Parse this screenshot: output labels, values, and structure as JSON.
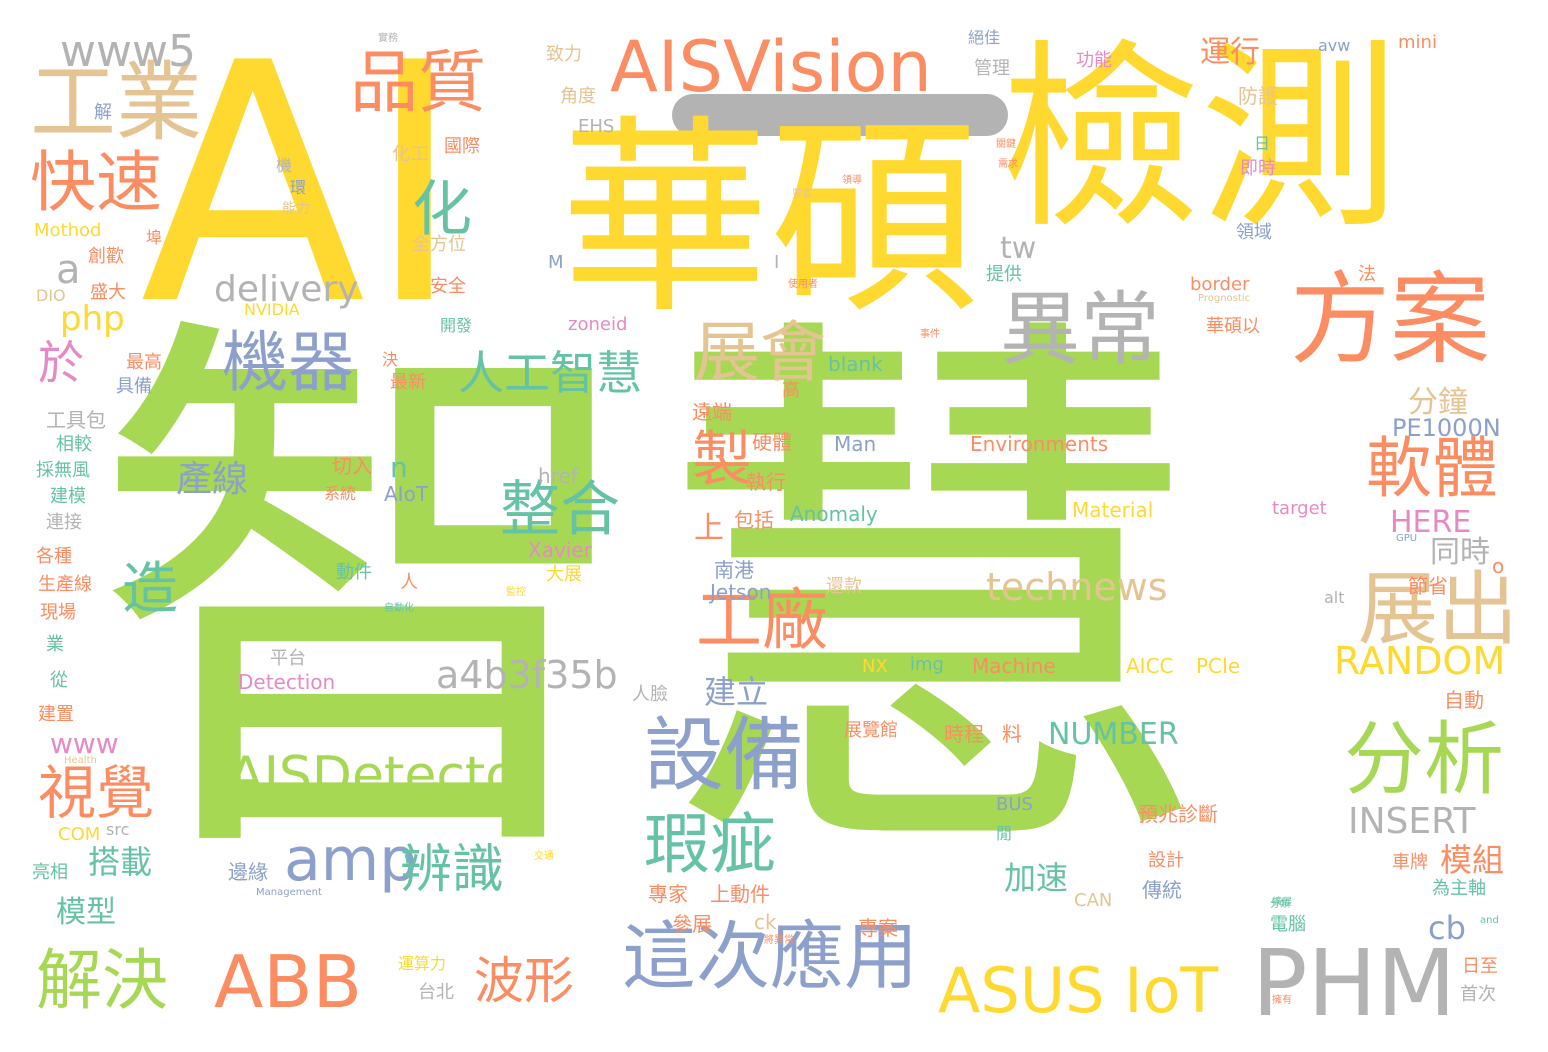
{
  "palette": {
    "green": "#a6d854",
    "yellow": "#ffd92f",
    "orange": "#fc8d62",
    "blue": "#8da0cb",
    "teal": "#66c2a5",
    "tan": "#e5c494",
    "gray": "#b3b3b3",
    "pink": "#e78ac3"
  },
  "words": [
    {
      "text": "智慧",
      "color": "green"
    },
    {
      "text": "AI",
      "color": "yellow"
    },
    {
      "text": "華碩",
      "color": "yellow"
    },
    {
      "text": "檢測",
      "color": "yellow"
    },
    {
      "text": "方案",
      "color": "orange"
    },
    {
      "text": "異常",
      "color": "gray"
    },
    {
      "text": "AISVision",
      "color": "orange"
    },
    {
      "text": "工業",
      "color": "tan"
    },
    {
      "text": "品質",
      "color": "orange"
    },
    {
      "text": "www5",
      "color": "gray"
    },
    {
      "text": "快速",
      "color": "orange"
    },
    {
      "text": "化",
      "color": "teal"
    },
    {
      "text": "機器",
      "color": "blue"
    },
    {
      "text": "展會",
      "color": "tan"
    },
    {
      "text": "人工智慧",
      "color": "teal"
    },
    {
      "text": "delivery",
      "color": "gray"
    },
    {
      "text": "tw",
      "color": "gray"
    },
    {
      "text": "php",
      "color": "yellow"
    },
    {
      "text": "a",
      "color": "gray"
    },
    {
      "text": "於",
      "color": "pink"
    },
    {
      "text": "軟體",
      "color": "orange"
    },
    {
      "text": "製",
      "color": "orange"
    },
    {
      "text": "整合",
      "color": "teal"
    },
    {
      "text": "展出",
      "color": "tan"
    },
    {
      "text": "工廠",
      "color": "orange"
    },
    {
      "text": "technews",
      "color": "tan"
    },
    {
      "text": "RANDOM",
      "color": "yellow"
    },
    {
      "text": "造",
      "color": "teal"
    },
    {
      "text": "產線",
      "color": "blue"
    },
    {
      "text": "a4b3f35b",
      "color": "gray"
    },
    {
      "text": "AISDetector",
      "color": "green"
    },
    {
      "text": "設備",
      "color": "blue"
    },
    {
      "text": "分析",
      "color": "green"
    },
    {
      "text": "amp",
      "color": "blue"
    },
    {
      "text": "視覺",
      "color": "orange"
    },
    {
      "text": "瑕疵",
      "color": "teal"
    },
    {
      "text": "辨識",
      "color": "teal"
    },
    {
      "text": "INSERT",
      "color": "gray"
    },
    {
      "text": "搭載",
      "color": "teal"
    },
    {
      "text": "模組",
      "color": "orange"
    },
    {
      "text": "NUMBER",
      "color": "teal"
    },
    {
      "text": "解決",
      "color": "green"
    },
    {
      "text": "ABB",
      "color": "orange"
    },
    {
      "text": "這次應用",
      "color": "blue"
    },
    {
      "text": "波形",
      "color": "orange"
    },
    {
      "text": "ASUS IoT",
      "color": "yellow"
    },
    {
      "text": "PHM",
      "color": "gray"
    },
    {
      "text": "cb",
      "color": "blue"
    },
    {
      "text": "www",
      "color": "pink"
    },
    {
      "text": "模型",
      "color": "teal"
    },
    {
      "text": "加速",
      "color": "teal"
    },
    {
      "text": "HERE",
      "color": "pink"
    },
    {
      "text": "分鐘",
      "color": "tan"
    },
    {
      "text": "PE1000N",
      "color": "blue"
    },
    {
      "text": "同時",
      "color": "gray"
    },
    {
      "text": "建立",
      "color": "blue"
    },
    {
      "text": "上",
      "color": "orange"
    },
    {
      "text": "運行",
      "color": "orange"
    },
    {
      "text": "n",
      "color": "teal"
    },
    {
      "text": "Environments",
      "color": "orange"
    },
    {
      "text": "Anomaly",
      "color": "teal"
    },
    {
      "text": "Material",
      "color": "yellow"
    },
    {
      "text": "Jetson",
      "color": "blue"
    },
    {
      "text": "Machine",
      "color": "orange"
    },
    {
      "text": "AICC",
      "color": "yellow"
    },
    {
      "text": "PCIe",
      "color": "yellow"
    },
    {
      "text": "Detection",
      "color": "pink"
    },
    {
      "text": "AIoT",
      "color": "blue"
    },
    {
      "text": "Xavier",
      "color": "pink"
    },
    {
      "text": "href",
      "color": "gray"
    },
    {
      "text": "Man",
      "color": "blue"
    },
    {
      "text": "blank",
      "color": "teal"
    },
    {
      "text": "NVIDIA",
      "color": "yellow"
    },
    {
      "text": "zoneid",
      "color": "pink"
    },
    {
      "text": "border",
      "color": "orange"
    },
    {
      "text": "target",
      "color": "pink"
    },
    {
      "text": "img",
      "color": "teal"
    },
    {
      "text": "NX",
      "color": "yellow"
    },
    {
      "text": "BUS",
      "color": "blue"
    },
    {
      "text": "CAN",
      "color": "tan"
    },
    {
      "text": "src",
      "color": "gray"
    },
    {
      "text": "COM",
      "color": "yellow"
    },
    {
      "text": "ck",
      "color": "tan"
    },
    {
      "text": "EHS",
      "color": "gray"
    },
    {
      "text": "DIO",
      "color": "tan"
    },
    {
      "text": "Mothod",
      "color": "yellow"
    },
    {
      "text": "avw",
      "color": "blue"
    },
    {
      "text": "mini",
      "color": "orange"
    },
    {
      "text": "alt",
      "color": "gray"
    },
    {
      "text": "o",
      "color": "orange"
    },
    {
      "text": "M",
      "color": "blue"
    },
    {
      "text": "I",
      "color": "gray"
    },
    {
      "text": "Prognostic",
      "color": "tan"
    },
    {
      "text": "Health",
      "color": "tan"
    },
    {
      "text": "Management",
      "color": "blue"
    },
    {
      "text": "預兆診斷",
      "color": "orange"
    },
    {
      "text": "專案",
      "color": "orange"
    },
    {
      "text": "傳統",
      "color": "blue"
    },
    {
      "text": "設計",
      "color": "orange"
    },
    {
      "text": "車牌",
      "color": "orange"
    },
    {
      "text": "為主軸",
      "color": "teal"
    },
    {
      "text": "電腦",
      "color": "teal"
    },
    {
      "text": "日至",
      "color": "orange"
    },
    {
      "text": "首次",
      "color": "gray"
    },
    {
      "text": "時程",
      "color": "orange"
    },
    {
      "text": "料",
      "color": "orange"
    },
    {
      "text": "展覽館",
      "color": "orange"
    },
    {
      "text": "專家",
      "color": "orange"
    },
    {
      "text": "上動件",
      "color": "orange"
    },
    {
      "text": "參展",
      "color": "orange"
    },
    {
      "text": "邊緣",
      "color": "blue"
    },
    {
      "text": "平台",
      "color": "gray"
    },
    {
      "text": "人臉",
      "color": "gray"
    },
    {
      "text": "動件",
      "color": "teal"
    },
    {
      "text": "系統",
      "color": "orange"
    },
    {
      "text": "切入",
      "color": "orange"
    },
    {
      "text": "人",
      "color": "orange"
    },
    {
      "text": "大展",
      "color": "yellow"
    },
    {
      "text": "南港",
      "color": "blue"
    },
    {
      "text": "還款",
      "color": "tan"
    },
    {
      "text": "執行",
      "color": "orange"
    },
    {
      "text": "包括",
      "color": "orange"
    },
    {
      "text": "硬體",
      "color": "orange"
    },
    {
      "text": "遠端",
      "color": "orange"
    },
    {
      "text": "高",
      "color": "orange"
    },
    {
      "text": "台北",
      "color": "gray"
    },
    {
      "text": "運算力",
      "color": "yellow"
    },
    {
      "text": "自動",
      "color": "orange"
    },
    {
      "text": "節省",
      "color": "orange"
    },
    {
      "text": "角度",
      "color": "tan"
    },
    {
      "text": "致力",
      "color": "tan"
    },
    {
      "text": "化工",
      "color": "tan"
    },
    {
      "text": "國際",
      "color": "orange"
    },
    {
      "text": "管理",
      "color": "gray"
    },
    {
      "text": "功能",
      "color": "pink"
    },
    {
      "text": "絕佳",
      "color": "blue"
    },
    {
      "text": "防護",
      "color": "tan"
    },
    {
      "text": "即時",
      "color": "pink"
    },
    {
      "text": "領域",
      "color": "blue"
    },
    {
      "text": "提供",
      "color": "teal"
    },
    {
      "text": "法",
      "color": "orange"
    },
    {
      "text": "華碩以",
      "color": "orange"
    },
    {
      "text": "全方位",
      "color": "tan"
    },
    {
      "text": "安全",
      "color": "orange"
    },
    {
      "text": "開發",
      "color": "teal"
    },
    {
      "text": "決",
      "color": "orange"
    },
    {
      "text": "最新",
      "color": "orange"
    },
    {
      "text": "最高",
      "color": "orange"
    },
    {
      "text": "具備",
      "color": "blue"
    },
    {
      "text": "工具包",
      "color": "gray"
    },
    {
      "text": "相較",
      "color": "teal"
    },
    {
      "text": "採無風",
      "color": "teal"
    },
    {
      "text": "建模",
      "color": "teal"
    },
    {
      "text": "連接",
      "color": "gray"
    },
    {
      "text": "各種",
      "color": "orange"
    },
    {
      "text": "生產線",
      "color": "orange"
    },
    {
      "text": "現場",
      "color": "orange"
    },
    {
      "text": "業",
      "color": "teal"
    },
    {
      "text": "從",
      "color": "teal"
    },
    {
      "text": "建置",
      "color": "orange"
    },
    {
      "text": "亮相",
      "color": "teal"
    },
    {
      "text": "盛大",
      "color": "orange"
    },
    {
      "text": "創歡",
      "color": "orange"
    },
    {
      "text": "解",
      "color": "blue"
    },
    {
      "text": "機",
      "color": "gray"
    },
    {
      "text": "環",
      "color": "blue"
    },
    {
      "text": "能力",
      "color": "tan"
    },
    {
      "text": "埠",
      "color": "orange"
    },
    {
      "text": "閒",
      "color": "teal"
    },
    {
      "text": "日",
      "color": "teal"
    },
    {
      "text": "實務",
      "color": "gray"
    },
    {
      "text": "關鍵",
      "color": "orange"
    },
    {
      "text": "需求",
      "color": "orange"
    },
    {
      "text": "領導",
      "color": "orange"
    },
    {
      "text": "使用者",
      "color": "orange"
    },
    {
      "text": "事件",
      "color": "orange"
    },
    {
      "text": "豐富",
      "color": "tan"
    },
    {
      "text": "擴展",
      "color": "teal"
    },
    {
      "text": "將異常",
      "color": "orange"
    },
    {
      "text": "自動化",
      "color": "teal"
    },
    {
      "text": "交通",
      "color": "yellow"
    },
    {
      "text": "監控",
      "color": "yellow"
    },
    {
      "text": "分類",
      "color": "teal"
    },
    {
      "text": "擁有",
      "color": "orange"
    },
    {
      "text": "and",
      "color": "teal"
    },
    {
      "text": "GPU",
      "color": "blue"
    }
  ]
}
